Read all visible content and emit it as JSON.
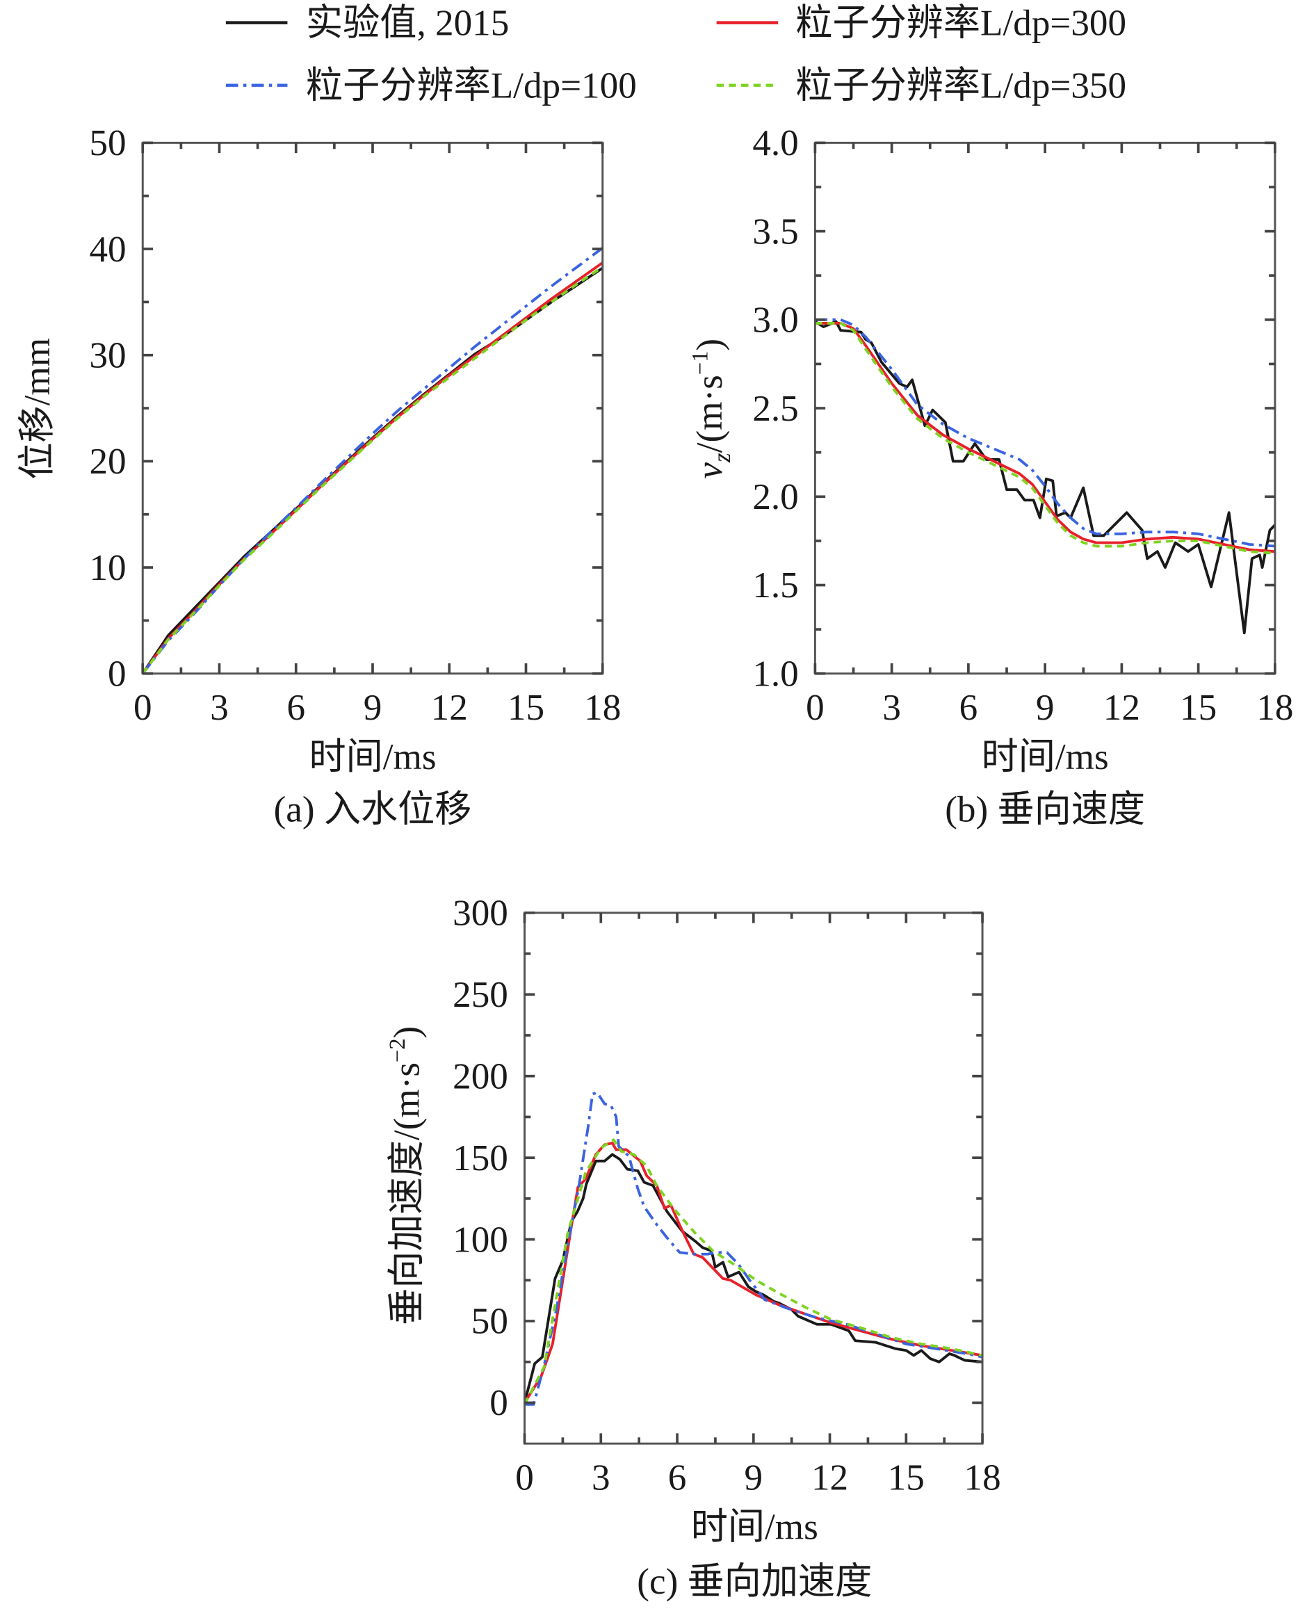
{
  "legend": [
    {
      "label": "实验值, 2015",
      "color": "#1a1a1a",
      "style": "solid"
    },
    {
      "label": "粒子分辨率L/dp=300",
      "color": "#e8202a",
      "style": "solid"
    },
    {
      "label": "粒子分辨率L/dp=100",
      "color": "#3a63e0",
      "style": "dashdot"
    },
    {
      "label": "粒子分辨率L/dp=350",
      "color": "#7ed321",
      "style": "dashed"
    }
  ],
  "chart_data": [
    {
      "type": "line",
      "title": "(a) 入水位移",
      "xlabel": "时间/ms",
      "ylabel": "位移/mm",
      "xlim": [
        0,
        18
      ],
      "ylim": [
        0,
        50
      ],
      "xticks": [
        "0",
        "3",
        "6",
        "9",
        "12",
        "15",
        "18"
      ],
      "yticks": [
        "0",
        "10",
        "20",
        "30",
        "40",
        "50"
      ],
      "grid": false,
      "series": [
        {
          "name": "实验值, 2015",
          "x": [
            0,
            1,
            2,
            3,
            4,
            5,
            6,
            7,
            8,
            9,
            10,
            11,
            12,
            13,
            14,
            15,
            16,
            17,
            18
          ],
          "y": [
            0,
            3.6,
            6.1,
            8.6,
            11.1,
            13.3,
            15.5,
            17.8,
            20,
            22.2,
            24.3,
            26.3,
            28.2,
            30.1,
            31.6,
            33.3,
            35,
            36.6,
            38.2
          ]
        },
        {
          "name": "粒子分辨率L/dp=300",
          "x": [
            0,
            1,
            2,
            3,
            4,
            5,
            6,
            7,
            8,
            9,
            10,
            11,
            12,
            13,
            14,
            15,
            16,
            17,
            18
          ],
          "y": [
            0,
            3.3,
            5.8,
            8.4,
            10.9,
            13.1,
            15.4,
            17.7,
            19.9,
            22.1,
            24.2,
            26.2,
            28.1,
            29.9,
            31.7,
            33.5,
            35.3,
            37,
            38.7
          ]
        },
        {
          "name": "粒子分辨率L/dp=100",
          "x": [
            0,
            1,
            2,
            3,
            4,
            5,
            6,
            7,
            8,
            9,
            10,
            11,
            12,
            13,
            14,
            15,
            16,
            17,
            18
          ],
          "y": [
            0,
            3.1,
            5.6,
            8.3,
            10.9,
            13.3,
            15.6,
            18,
            20.3,
            22.6,
            24.8,
            26.8,
            28.8,
            30.8,
            32.7,
            34.6,
            36.5,
            38.3,
            40.1
          ]
        },
        {
          "name": "粒子分辨率L/dp=350",
          "x": [
            0,
            1,
            2,
            3,
            4,
            5,
            6,
            7,
            8,
            9,
            10,
            11,
            12,
            13,
            14,
            15,
            16,
            17,
            18
          ],
          "y": [
            0,
            3.2,
            5.7,
            8.3,
            10.8,
            13,
            15.3,
            17.6,
            19.8,
            22,
            24.1,
            26.1,
            27.9,
            29.7,
            31.5,
            33.3,
            35,
            36.7,
            38.3
          ]
        }
      ]
    },
    {
      "type": "line",
      "title": "(b) 垂向速度",
      "xlabel": "时间/ms",
      "ylabel_parts": [
        "v",
        "z",
        "/(m·s",
        "−1",
        ")"
      ],
      "xlim": [
        0,
        18
      ],
      "ylim": [
        1.0,
        4.0
      ],
      "xticks": [
        "0",
        "3",
        "6",
        "9",
        "12",
        "15",
        "18"
      ],
      "yticks": [
        "1.0",
        "1.5",
        "2.0",
        "2.5",
        "3.0",
        "3.5",
        "4.0"
      ],
      "grid": false,
      "series": [
        {
          "name": "实验值, 2015",
          "x": [
            0,
            0.33,
            0.82,
            1.0,
            1.8,
            1.97,
            2.2,
            2.6,
            3.3,
            3.6,
            3.8,
            4.3,
            4.6,
            5.1,
            5.4,
            5.8,
            6.25,
            6.7,
            7.2,
            7.5,
            7.9,
            8.2,
            8.55,
            8.8,
            9.05,
            9.3,
            9.45,
            9.8,
            10.0,
            10.5,
            10.9,
            11.3,
            12.2,
            12.8,
            13.0,
            13.4,
            13.7,
            14.1,
            14.6,
            15.0,
            15.5,
            16.2,
            16.8,
            17.1,
            17.4,
            17.5,
            17.8,
            18
          ],
          "y": [
            2.99,
            2.96,
            2.99,
            2.94,
            2.93,
            2.89,
            2.87,
            2.76,
            2.64,
            2.62,
            2.66,
            2.4,
            2.49,
            2.42,
            2.2,
            2.2,
            2.3,
            2.21,
            2.21,
            2.04,
            2.04,
            1.98,
            1.98,
            1.88,
            2.1,
            2.09,
            1.89,
            1.91,
            1.88,
            2.05,
            1.78,
            1.78,
            1.91,
            1.81,
            1.65,
            1.69,
            1.6,
            1.74,
            1.69,
            1.73,
            1.49,
            1.91,
            1.23,
            1.65,
            1.67,
            1.6,
            1.81,
            1.84
          ]
        },
        {
          "name": "粒子分辨率L/dp=300",
          "x": [
            0,
            1,
            1.5,
            2,
            3,
            4,
            5,
            6,
            7,
            8,
            8.5,
            9,
            9.5,
            10,
            10.5,
            11,
            12,
            13,
            14,
            15,
            16,
            17,
            18
          ],
          "y": [
            2.98,
            2.98,
            2.95,
            2.85,
            2.64,
            2.46,
            2.35,
            2.27,
            2.2,
            2.13,
            2.07,
            1.97,
            1.87,
            1.8,
            1.76,
            1.74,
            1.74,
            1.76,
            1.77,
            1.76,
            1.73,
            1.7,
            1.69
          ]
        },
        {
          "name": "粒子分辨率L/dp=100",
          "x": [
            0,
            1,
            1.5,
            2,
            3,
            4,
            5,
            6,
            7,
            8,
            8.5,
            9,
            9.5,
            10,
            10.5,
            11,
            12,
            13,
            14,
            15,
            16,
            17,
            18
          ],
          "y": [
            3.0,
            3.0,
            2.97,
            2.9,
            2.72,
            2.52,
            2.41,
            2.33,
            2.27,
            2.21,
            2.15,
            2.06,
            1.96,
            1.88,
            1.82,
            1.79,
            1.79,
            1.8,
            1.8,
            1.79,
            1.76,
            1.73,
            1.72
          ]
        },
        {
          "name": "粒子分辨率L/dp=350",
          "x": [
            0,
            1,
            1.5,
            2,
            3,
            4,
            5,
            6,
            7,
            8,
            8.5,
            9,
            9.5,
            10,
            10.5,
            11,
            12,
            13,
            14,
            15,
            16,
            17,
            18
          ],
          "y": [
            2.98,
            2.98,
            2.94,
            2.83,
            2.62,
            2.44,
            2.33,
            2.25,
            2.18,
            2.11,
            2.05,
            1.95,
            1.85,
            1.78,
            1.74,
            1.72,
            1.72,
            1.74,
            1.75,
            1.75,
            1.72,
            1.69,
            1.68
          ]
        }
      ]
    },
    {
      "type": "line",
      "title": "(c)  垂向加速度",
      "xlabel": "时间/ms",
      "ylabel_parts": [
        "垂向加速度/(m·s",
        "−2",
        ")"
      ],
      "xlim": [
        0,
        18
      ],
      "ylim": [
        -25,
        300
      ],
      "xticks": [
        "0",
        "3",
        "6",
        "9",
        "12",
        "15",
        "18"
      ],
      "yticks": [
        "0",
        "50",
        "100",
        "150",
        "200",
        "250",
        "300"
      ],
      "grid": false,
      "series": [
        {
          "name": "实验值, 2015",
          "x": [
            0,
            0.4,
            0.7,
            1.2,
            1.5,
            1.84,
            2.08,
            2.3,
            2.43,
            2.8,
            3.15,
            3.45,
            3.75,
            4.04,
            4.45,
            4.7,
            5.05,
            5.6,
            6.2,
            6.7,
            7.0,
            7.35,
            7.5,
            7.8,
            8.0,
            8.43,
            8.8,
            9.1,
            9.4,
            9.8,
            10.0,
            10.5,
            10.75,
            11.5,
            12.05,
            12.75,
            13.0,
            13.8,
            14.6,
            15.0,
            15.3,
            15.6,
            15.95,
            16.3,
            16.7,
            16.9,
            17.3,
            18
          ],
          "y": [
            0,
            24,
            28,
            76,
            87,
            111,
            117,
            125,
            134,
            148,
            148,
            152,
            149,
            143,
            142,
            135,
            133,
            117,
            105,
            99,
            95,
            93,
            83,
            86,
            77,
            80,
            71,
            68,
            66,
            62,
            61,
            57,
            53,
            48,
            48,
            44,
            38,
            37,
            33,
            32,
            29,
            32,
            27,
            25,
            30,
            29,
            26,
            25
          ]
        },
        {
          "name": "粒子分辨率L/dp=300",
          "x": [
            0,
            0.65,
            1.1,
            1.84,
            2.1,
            2.4,
            2.8,
            3.15,
            3.45,
            3.6,
            4.0,
            4.55,
            4.8,
            5.2,
            5.5,
            5.75,
            6.15,
            6.65,
            7.0,
            7.8,
            8.1,
            9.1,
            10.0,
            10.9,
            12.05,
            13.2,
            14.4,
            15.6,
            16.8,
            18
          ],
          "y": [
            0,
            16,
            36,
            108,
            132,
            137,
            152,
            158,
            159,
            155,
            155,
            148,
            139,
            133,
            119,
            121,
            107,
            91,
            89,
            76,
            75,
            66,
            60,
            55,
            49,
            44,
            39,
            35,
            32,
            29
          ]
        },
        {
          "name": "粒子分辨率L/dp=100",
          "x": [
            0,
            0.36,
            0.77,
            1.25,
            1.7,
            2.14,
            2.5,
            2.67,
            2.85,
            3.15,
            3.4,
            3.6,
            3.7,
            4.1,
            4.45,
            4.7,
            5.2,
            5.6,
            6.1,
            6.7,
            7.2,
            7.5,
            7.96,
            8.4,
            8.85,
            9.45,
            10.3,
            11.5,
            12.65,
            13.85,
            15.0,
            16.2,
            17.4,
            18
          ],
          "y": [
            -1,
            -1,
            23,
            57,
            97,
            133,
            169,
            189,
            190,
            183,
            182,
            175,
            157,
            151,
            131,
            120,
            109,
            101,
            92,
            91,
            91,
            92,
            92,
            85,
            75,
            63,
            58,
            52,
            48,
            42,
            36,
            33,
            30,
            28
          ]
        },
        {
          "name": "粒子分辨率L/dp=350",
          "x": [
            0,
            0.77,
            1.7,
            2.4,
            3.0,
            3.5,
            3.8,
            4.3,
            4.8,
            5.2,
            5.85,
            6.7,
            7.4,
            8.3,
            9.1,
            10.0,
            11.1,
            12.05,
            13.2,
            14.4,
            15.6,
            16.8,
            18
          ],
          "y": [
            -1,
            22,
            104,
            141,
            156,
            161,
            154,
            152,
            145,
            133,
            119,
            104,
            93,
            84,
            75,
            67,
            58,
            51,
            46,
            40,
            36,
            33,
            29
          ]
        }
      ]
    }
  ]
}
